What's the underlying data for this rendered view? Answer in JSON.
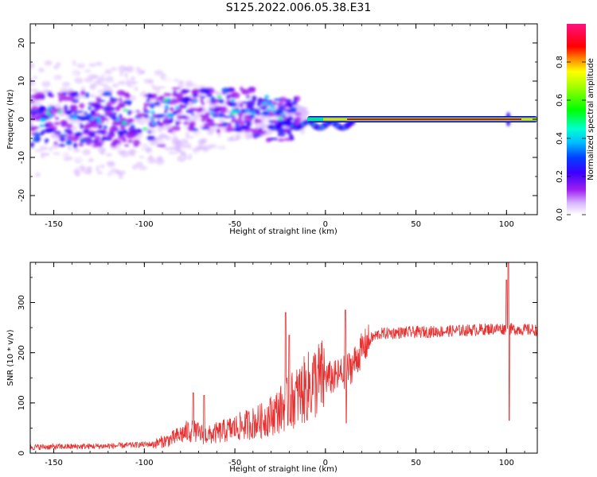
{
  "title": "S125.2022.006.05.38.E31",
  "chart_data": [
    {
      "type": "heatmap",
      "name": "spectrogram",
      "xlabel": "Height of straight line (km)",
      "ylabel": "Frequency (Hz)",
      "xlim": [
        -163,
        117
      ],
      "ylim": [
        -25,
        25
      ],
      "xticks": [
        -150,
        -100,
        -50,
        0,
        50,
        100
      ],
      "yticks": [
        -20,
        -10,
        0,
        10,
        20
      ],
      "colorbar": {
        "label": "Normalized spectral amplitude",
        "range": [
          0,
          1
        ],
        "ticks": [
          "0.0",
          "0.2",
          "0.4",
          "0.6",
          "0.8"
        ],
        "colors": [
          "#ffffff",
          "#a020f0",
          "#0000ff",
          "#00ffff",
          "#00ff00",
          "#ffff00",
          "#ff0000",
          "#ff00aa"
        ]
      },
      "features": {
        "tone_start_km": -10,
        "tone_frequency_hz": 0,
        "scatter_region_km": [
          -163,
          -25
        ],
        "spike_km": 101
      }
    },
    {
      "type": "line",
      "name": "snr",
      "xlabel": "Height of straight line (km)",
      "ylabel": "SNR (10 * v/v)",
      "xlim": [
        -163,
        117
      ],
      "ylim": [
        0,
        380
      ],
      "xticks": [
        -150,
        -100,
        -50,
        0,
        50,
        100
      ],
      "yticks": [
        0,
        100,
        200,
        300
      ],
      "line_color": "#e83030",
      "trend_points": [
        {
          "x": -163,
          "y": 12
        },
        {
          "x": -120,
          "y": 14
        },
        {
          "x": -95,
          "y": 18
        },
        {
          "x": -85,
          "y": 28
        },
        {
          "x": -75,
          "y": 45
        },
        {
          "x": -65,
          "y": 35
        },
        {
          "x": -55,
          "y": 45
        },
        {
          "x": -45,
          "y": 55
        },
        {
          "x": -35,
          "y": 65
        },
        {
          "x": -28,
          "y": 80
        },
        {
          "x": -22,
          "y": 95
        },
        {
          "x": -15,
          "y": 115
        },
        {
          "x": -10,
          "y": 130
        },
        {
          "x": -5,
          "y": 145
        },
        {
          "x": 0,
          "y": 150
        },
        {
          "x": 5,
          "y": 150
        },
        {
          "x": 10,
          "y": 160
        },
        {
          "x": 15,
          "y": 175
        },
        {
          "x": 20,
          "y": 205
        },
        {
          "x": 25,
          "y": 228
        },
        {
          "x": 30,
          "y": 238
        },
        {
          "x": 40,
          "y": 240
        },
        {
          "x": 60,
          "y": 242
        },
        {
          "x": 80,
          "y": 245
        },
        {
          "x": 95,
          "y": 248
        },
        {
          "x": 117,
          "y": 245
        }
      ],
      "spikes": [
        {
          "x": -73,
          "y": 120
        },
        {
          "x": -67,
          "y": 115
        },
        {
          "x": -22,
          "y": 280
        },
        {
          "x": -20,
          "y": 235
        },
        {
          "x": 11,
          "y": 285
        },
        {
          "x": 11.5,
          "y": 60
        },
        {
          "x": 100,
          "y": 345
        },
        {
          "x": 101,
          "y": 380
        },
        {
          "x": 101.5,
          "y": 65
        }
      ]
    }
  ]
}
